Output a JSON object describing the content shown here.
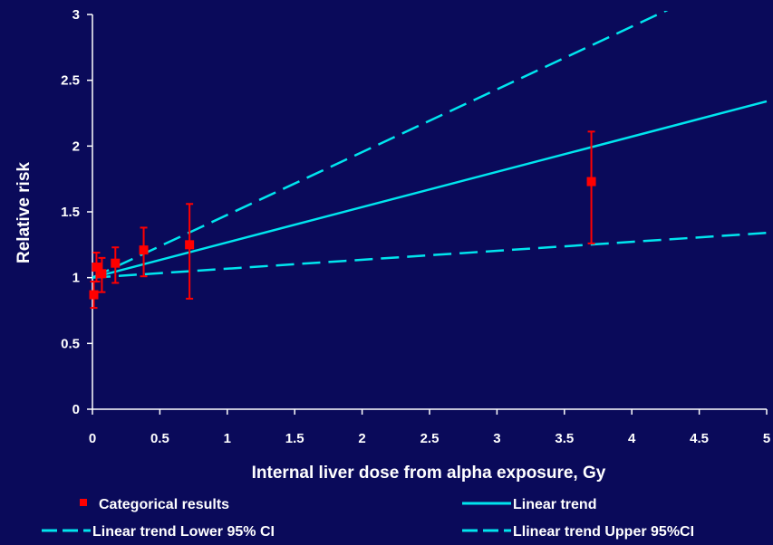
{
  "chart_data": {
    "type": "scatter",
    "title": "",
    "xlabel": "Internal liver dose from alpha exposure, Gy",
    "ylabel": "Relative risk",
    "xlim": [
      0,
      5
    ],
    "ylim": [
      0,
      3
    ],
    "xticks": [
      0,
      0.5,
      1,
      1.5,
      2,
      2.5,
      3,
      3.5,
      4,
      4.5,
      5
    ],
    "xtick_labels": [
      "0",
      "0.5",
      "1",
      "1.5",
      "2",
      "2.5",
      "3",
      "3.5",
      "4",
      "4.5",
      "5"
    ],
    "yticks": [
      0,
      0.5,
      1,
      1.5,
      2,
      2.5,
      3
    ],
    "ytick_labels": [
      "0",
      "0.5",
      "1",
      "1.5",
      "2",
      "2.5",
      "3"
    ],
    "grid": false,
    "legend_position": "bottom",
    "colors": {
      "background": "#0a0a5a",
      "points": "#ff0000",
      "lines": "#00e5ee",
      "text": "#ffffff"
    },
    "series": [
      {
        "name": "Categorical results",
        "kind": "points-with-error-bars",
        "color": "#ff0000",
        "points": [
          {
            "x": 0.01,
            "y": 0.87,
            "lo": 0.77,
            "hi": 0.97
          },
          {
            "x": 0.03,
            "y": 1.08,
            "lo": 0.97,
            "hi": 1.19
          },
          {
            "x": 0.07,
            "y": 1.03,
            "lo": 0.89,
            "hi": 1.15
          },
          {
            "x": 0.17,
            "y": 1.11,
            "lo": 0.96,
            "hi": 1.23
          },
          {
            "x": 0.38,
            "y": 1.21,
            "lo": 1.01,
            "hi": 1.38
          },
          {
            "x": 0.72,
            "y": 1.25,
            "lo": 0.84,
            "hi": 1.56
          },
          {
            "x": 3.7,
            "y": 1.73,
            "lo": 1.26,
            "hi": 2.11
          }
        ]
      },
      {
        "name": "Linear trend",
        "kind": "line",
        "style": "solid",
        "color": "#00e5ee",
        "intercept": 1,
        "slope": 0.268
      },
      {
        "name": "Linear trend Lower 95% CI",
        "kind": "line",
        "style": "dashed",
        "color": "#00e5ee",
        "intercept": 1,
        "slope": 0.068
      },
      {
        "name": "Llinear trend Upper 95%CI",
        "kind": "line",
        "style": "dashed",
        "color": "#00e5ee",
        "intercept": 1,
        "slope": 0.477
      }
    ]
  }
}
